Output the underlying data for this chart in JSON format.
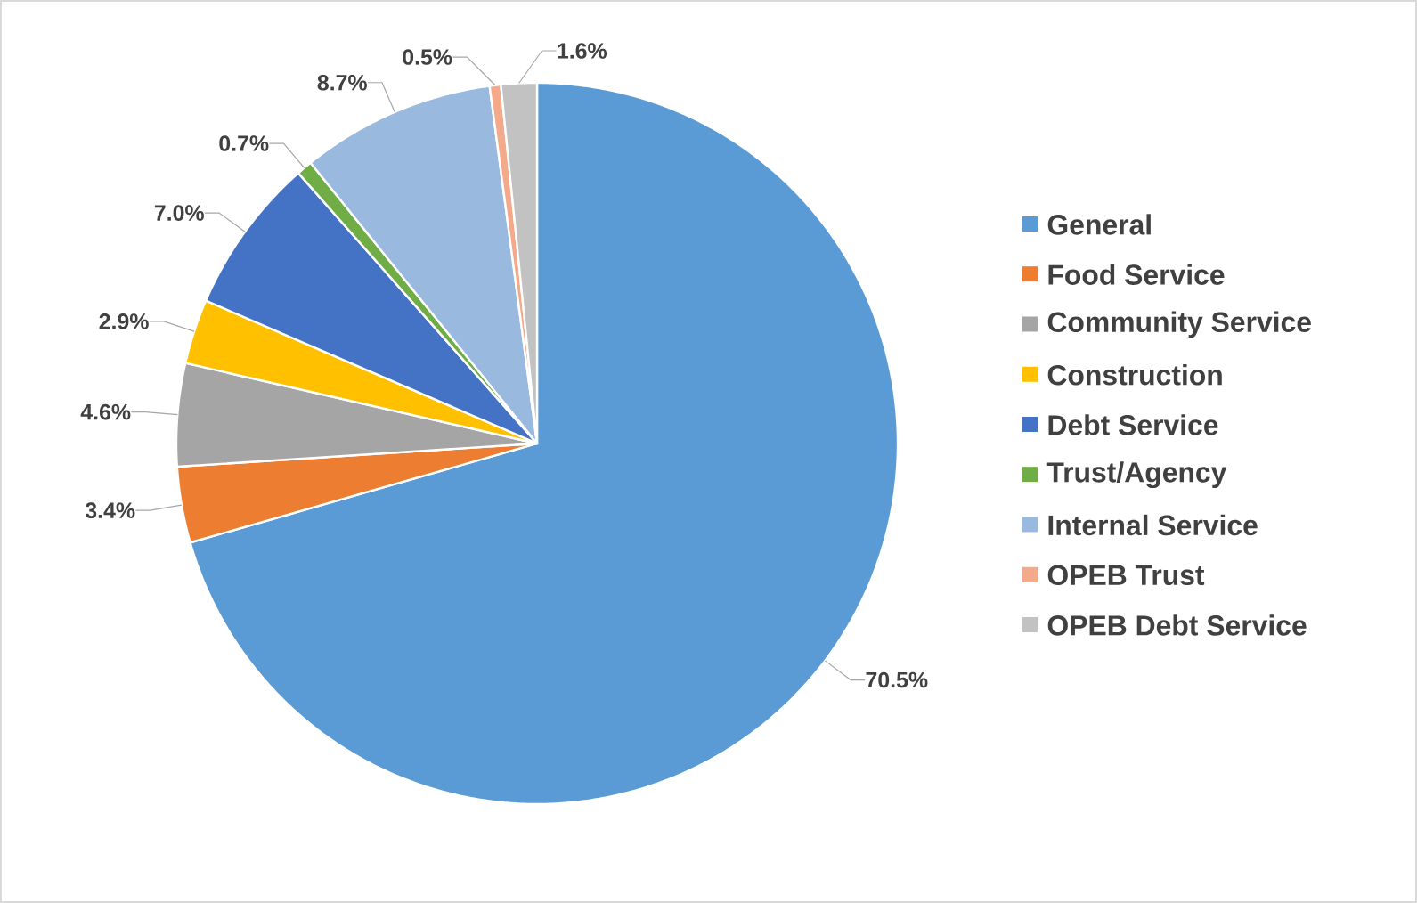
{
  "chart_data": {
    "type": "pie",
    "legend": "right",
    "categories": [
      "General",
      "Food Service",
      "Community Service",
      "Construction",
      "Debt Service",
      "Trust/Agency",
      "Internal Service",
      "OPEB Trust",
      "OPEB Debt Service"
    ],
    "values": [
      70.5,
      3.4,
      4.6,
      2.9,
      7.0,
      0.7,
      8.7,
      0.5,
      1.6
    ],
    "value_labels": [
      "70.5%",
      "3.4%",
      "4.6%",
      "2.9%",
      "7.0%",
      "0.7%",
      "8.7%",
      "0.5%",
      "1.6%"
    ],
    "colors": [
      "#5b9bd5",
      "#ed7d31",
      "#a5a5a5",
      "#ffc000",
      "#4472c4",
      "#70ad47",
      "#9ab9df",
      "#f4a98a",
      "#c2c2c2"
    ]
  }
}
